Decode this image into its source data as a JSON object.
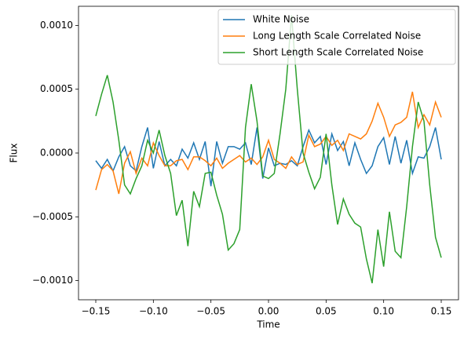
{
  "chart_data": {
    "type": "line",
    "xlabel": "Time",
    "ylabel": "Flux",
    "xlim": [
      -0.165,
      0.165
    ],
    "ylim": [
      -0.00115,
      0.00115
    ],
    "xticks": [
      {
        "value": -0.15,
        "label": "−0.15"
      },
      {
        "value": -0.1,
        "label": "−0.10"
      },
      {
        "value": -0.05,
        "label": "−0.05"
      },
      {
        "value": 0,
        "label": "0.00"
      },
      {
        "value": 0.05,
        "label": "0.05"
      },
      {
        "value": 0.1,
        "label": "0.10"
      },
      {
        "value": 0.15,
        "label": "0.15"
      }
    ],
    "yticks": [
      {
        "value": -0.001,
        "label": "−0.0010"
      },
      {
        "value": -0.0005,
        "label": "−0.0005"
      },
      {
        "value": 0,
        "label": "0.0000"
      },
      {
        "value": 0.0005,
        "label": "0.0005"
      },
      {
        "value": 0.001,
        "label": "0.0010"
      }
    ],
    "legend": "upper right",
    "x": [
      -0.15,
      -0.145,
      -0.14,
      -0.135,
      -0.13,
      -0.125,
      -0.12,
      -0.115,
      -0.11,
      -0.105,
      -0.1,
      -0.095,
      -0.09,
      -0.085,
      -0.08,
      -0.075,
      -0.07,
      -0.065,
      -0.06,
      -0.055,
      -0.05,
      -0.045,
      -0.04,
      -0.035,
      -0.03,
      -0.025,
      -0.02,
      -0.015,
      -0.01,
      -0.005,
      0,
      0.005,
      0.01,
      0.015,
      0.02,
      0.025,
      0.03,
      0.035,
      0.04,
      0.045,
      0.05,
      0.055,
      0.06,
      0.065,
      0.07,
      0.075,
      0.08,
      0.085,
      0.09,
      0.095,
      0.1,
      0.105,
      0.11,
      0.115,
      0.12,
      0.125,
      0.13,
      0.135,
      0.14,
      0.145,
      0.15
    ],
    "series": [
      {
        "name": "White Noise",
        "color": "#1f77b4",
        "values": [
          -6e-05,
          -0.00012,
          -5e-05,
          -0.00014,
          -3e-05,
          5e-05,
          -0.0001,
          -0.00014,
          5e-05,
          0.0002,
          -0.00012,
          9e-05,
          -0.0001,
          -5e-05,
          -0.0001,
          3e-05,
          -4e-05,
          8e-05,
          -5e-05,
          9e-05,
          -0.00026,
          9e-05,
          -8e-05,
          5e-05,
          5e-05,
          3e-05,
          8e-05,
          -9e-05,
          0.0002,
          -0.0002,
          4e-05,
          -0.0001,
          -8e-05,
          -9e-05,
          -6e-05,
          -0.0001,
          5e-05,
          0.00018,
          8e-05,
          0.00013,
          -9e-05,
          0.00015,
          2e-05,
          9e-05,
          -0.0001,
          8e-05,
          -5e-05,
          -0.00016,
          -0.0001,
          5e-05,
          0.00012,
          -9e-05,
          0.00013,
          -8e-05,
          0.0001,
          -0.00016,
          -3e-05,
          -4e-05,
          5e-05,
          0.0002,
          -5e-05
        ]
      },
      {
        "name": "Long Length Scale Correlated Noise",
        "color": "#ff7f0e",
        "values": [
          -0.00029,
          -0.00013,
          -9e-05,
          -0.00014,
          -0.00032,
          -8e-05,
          1e-05,
          -0.00016,
          -4e-05,
          -0.0001,
          8e-05,
          -2e-05,
          -0.0001,
          -0.0001,
          -6e-05,
          -5e-05,
          -0.00013,
          -3e-05,
          -3e-05,
          -6e-05,
          -0.0001,
          -4e-05,
          -0.00012,
          -8e-05,
          -5e-05,
          -2e-05,
          -7e-05,
          -4e-05,
          -9e-05,
          -3e-05,
          0.0001,
          -5e-05,
          -8e-05,
          -0.00012,
          -3e-05,
          -9e-05,
          -7e-05,
          0.00014,
          5e-05,
          7e-05,
          0.00013,
          6e-05,
          0.0001,
          2e-05,
          0.00015,
          0.00013,
          0.00011,
          0.00015,
          0.00025,
          0.00039,
          0.00028,
          0.00013,
          0.00022,
          0.00024,
          0.00028,
          0.00048,
          0.0002,
          0.0003,
          0.00022,
          0.0004,
          0.00028
        ]
      },
      {
        "name": "Short Length Scale Correlated Noise",
        "color": "#2ca02c",
        "values": [
          0.00029,
          0.00046,
          0.00061,
          0.0004,
          0.0001,
          -0.00025,
          -0.00032,
          -0.0002,
          -0.0001,
          0.0001,
          0,
          0.00018,
          -2e-05,
          -0.00016,
          -0.00049,
          -0.00037,
          -0.00073,
          -0.0003,
          -0.00042,
          -0.00016,
          -0.00015,
          -0.00033,
          -0.00048,
          -0.00076,
          -0.00071,
          -0.0006,
          0.0002,
          0.00054,
          0.00025,
          -0.00018,
          -0.0002,
          -0.00016,
          0.00015,
          0.0005,
          0.00108,
          0.0005,
          0,
          -0.00015,
          -0.00028,
          -0.00019,
          0.00015,
          -0.00025,
          -0.00056,
          -0.00036,
          -0.00048,
          -0.00055,
          -0.00058,
          -0.00083,
          -0.00102,
          -0.0006,
          -0.00089,
          -0.00046,
          -0.00077,
          -0.00082,
          -0.00042,
          5e-05,
          0.0004,
          0.00025,
          -0.00025,
          -0.00066,
          -0.00082
        ]
      }
    ]
  }
}
